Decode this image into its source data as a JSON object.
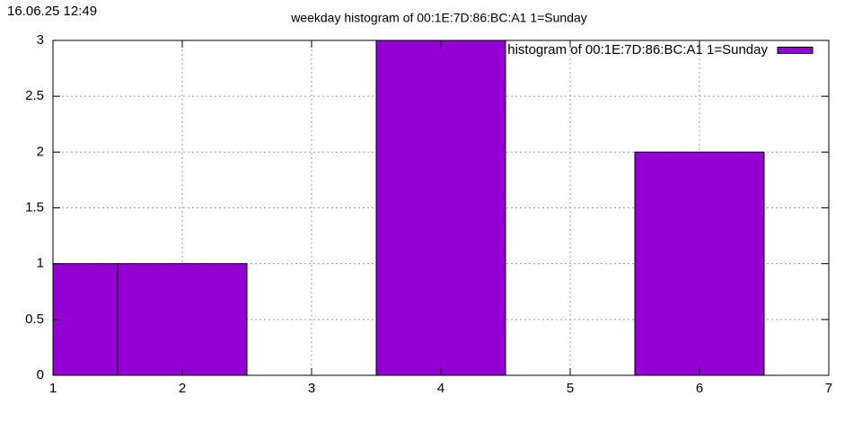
{
  "timestamp": "16.06.25 12:49",
  "chart_data": {
    "type": "bar",
    "title": "weekday histogram of 00:1E:7D:86:BC:A1 1=Sunday",
    "x": [
      1,
      2,
      4,
      6
    ],
    "series": [
      {
        "name": "weekday histogram of 00:1E:7D:86:BC:A1 1=Sunday",
        "color": "#9400d3",
        "values": [
          1,
          1,
          3,
          2
        ]
      }
    ],
    "xlim": [
      1,
      7
    ],
    "xticks": [
      1,
      2,
      3,
      4,
      5,
      6,
      7
    ],
    "ylim": [
      0,
      3
    ],
    "yticks": [
      0,
      0.5,
      1,
      1.5,
      2,
      2.5,
      3
    ],
    "grid": true,
    "legend": "top-right"
  }
}
